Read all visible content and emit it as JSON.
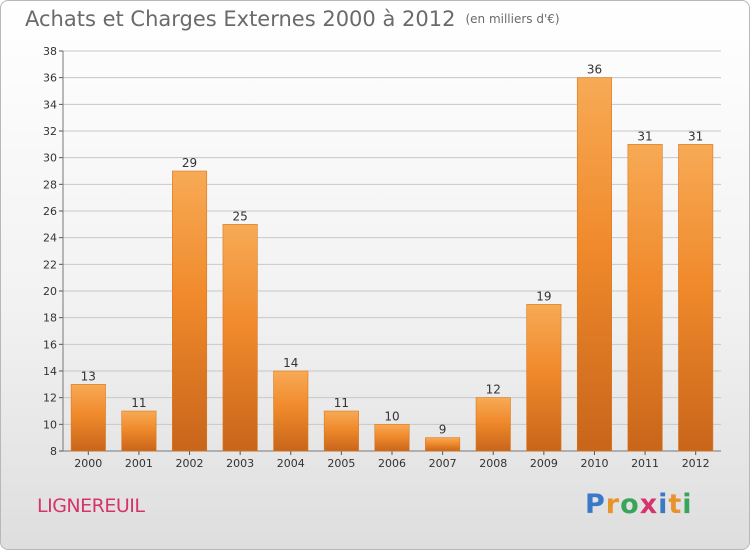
{
  "title": "Achats et Charges Externes 2000 à 2012",
  "unit_note": "(en milliers d'€)",
  "commune": "LIGNEREUIL",
  "logo": {
    "letters": [
      "P",
      "r",
      "o",
      "x",
      "i",
      "t",
      "i"
    ],
    "colors": [
      "#3a78c8",
      "#e8932c",
      "#3aa55a",
      "#d6336c",
      "#3a78c8",
      "#e8932c",
      "#3aa55a"
    ]
  },
  "colors": {
    "bar": "#f08a2c",
    "bar_light": "#f7aa55",
    "bar_dark": "#c8651a",
    "grid": "#c8c8c8"
  },
  "chart_data": {
    "type": "bar",
    "categories": [
      "2000",
      "2001",
      "2002",
      "2003",
      "2004",
      "2005",
      "2006",
      "2007",
      "2008",
      "2009",
      "2010",
      "2011",
      "2012"
    ],
    "values": [
      13,
      11,
      29,
      25,
      14,
      11,
      10,
      9,
      12,
      19,
      36,
      31,
      31
    ],
    "ylim": [
      8,
      38
    ],
    "yticks": [
      8,
      10,
      12,
      14,
      16,
      18,
      20,
      22,
      24,
      26,
      28,
      30,
      32,
      34,
      36,
      38
    ],
    "grid": true
  }
}
